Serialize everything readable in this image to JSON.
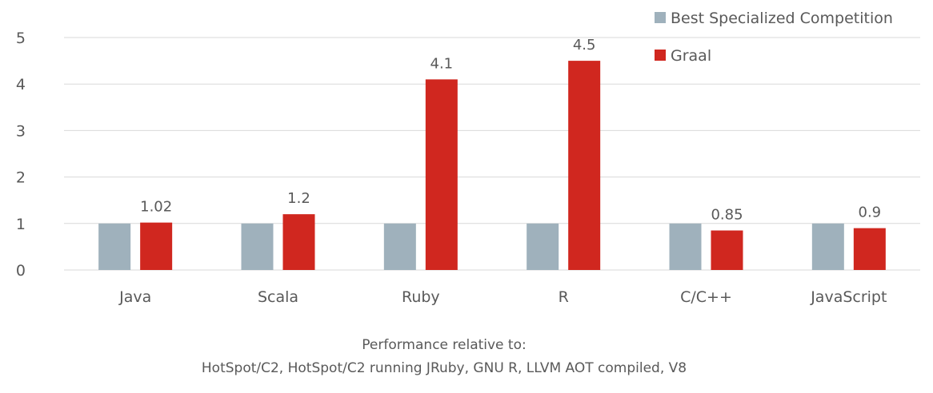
{
  "chart_data": {
    "type": "bar",
    "categories": [
      "Java",
      "Scala",
      "Ruby",
      "R",
      "C/C++",
      "JavaScript"
    ],
    "series": [
      {
        "name": "Best Specialized Competition",
        "color": "#9fb1bc",
        "values": [
          1,
          1,
          1,
          1,
          1,
          1
        ],
        "data_labels": [
          "",
          "",
          "",
          "",
          "",
          ""
        ]
      },
      {
        "name": "Graal",
        "color": "#d0271f",
        "values": [
          1.02,
          1.2,
          4.1,
          4.5,
          0.85,
          0.9
        ],
        "data_labels": [
          "1.02",
          "1.2",
          "4.1",
          "4.5",
          "0.85",
          "0.9"
        ]
      }
    ],
    "ylim": [
      0,
      5
    ],
    "yticks": [
      "0",
      "1",
      "2",
      "3",
      "4",
      "5"
    ],
    "grid": true,
    "legend": "top-right",
    "xlabel_lines": [
      "Performance relative to:",
      "HotSpot/C2, HotSpot/C2 running JRuby, GNU R, LLVM AOT compiled, V8"
    ]
  }
}
